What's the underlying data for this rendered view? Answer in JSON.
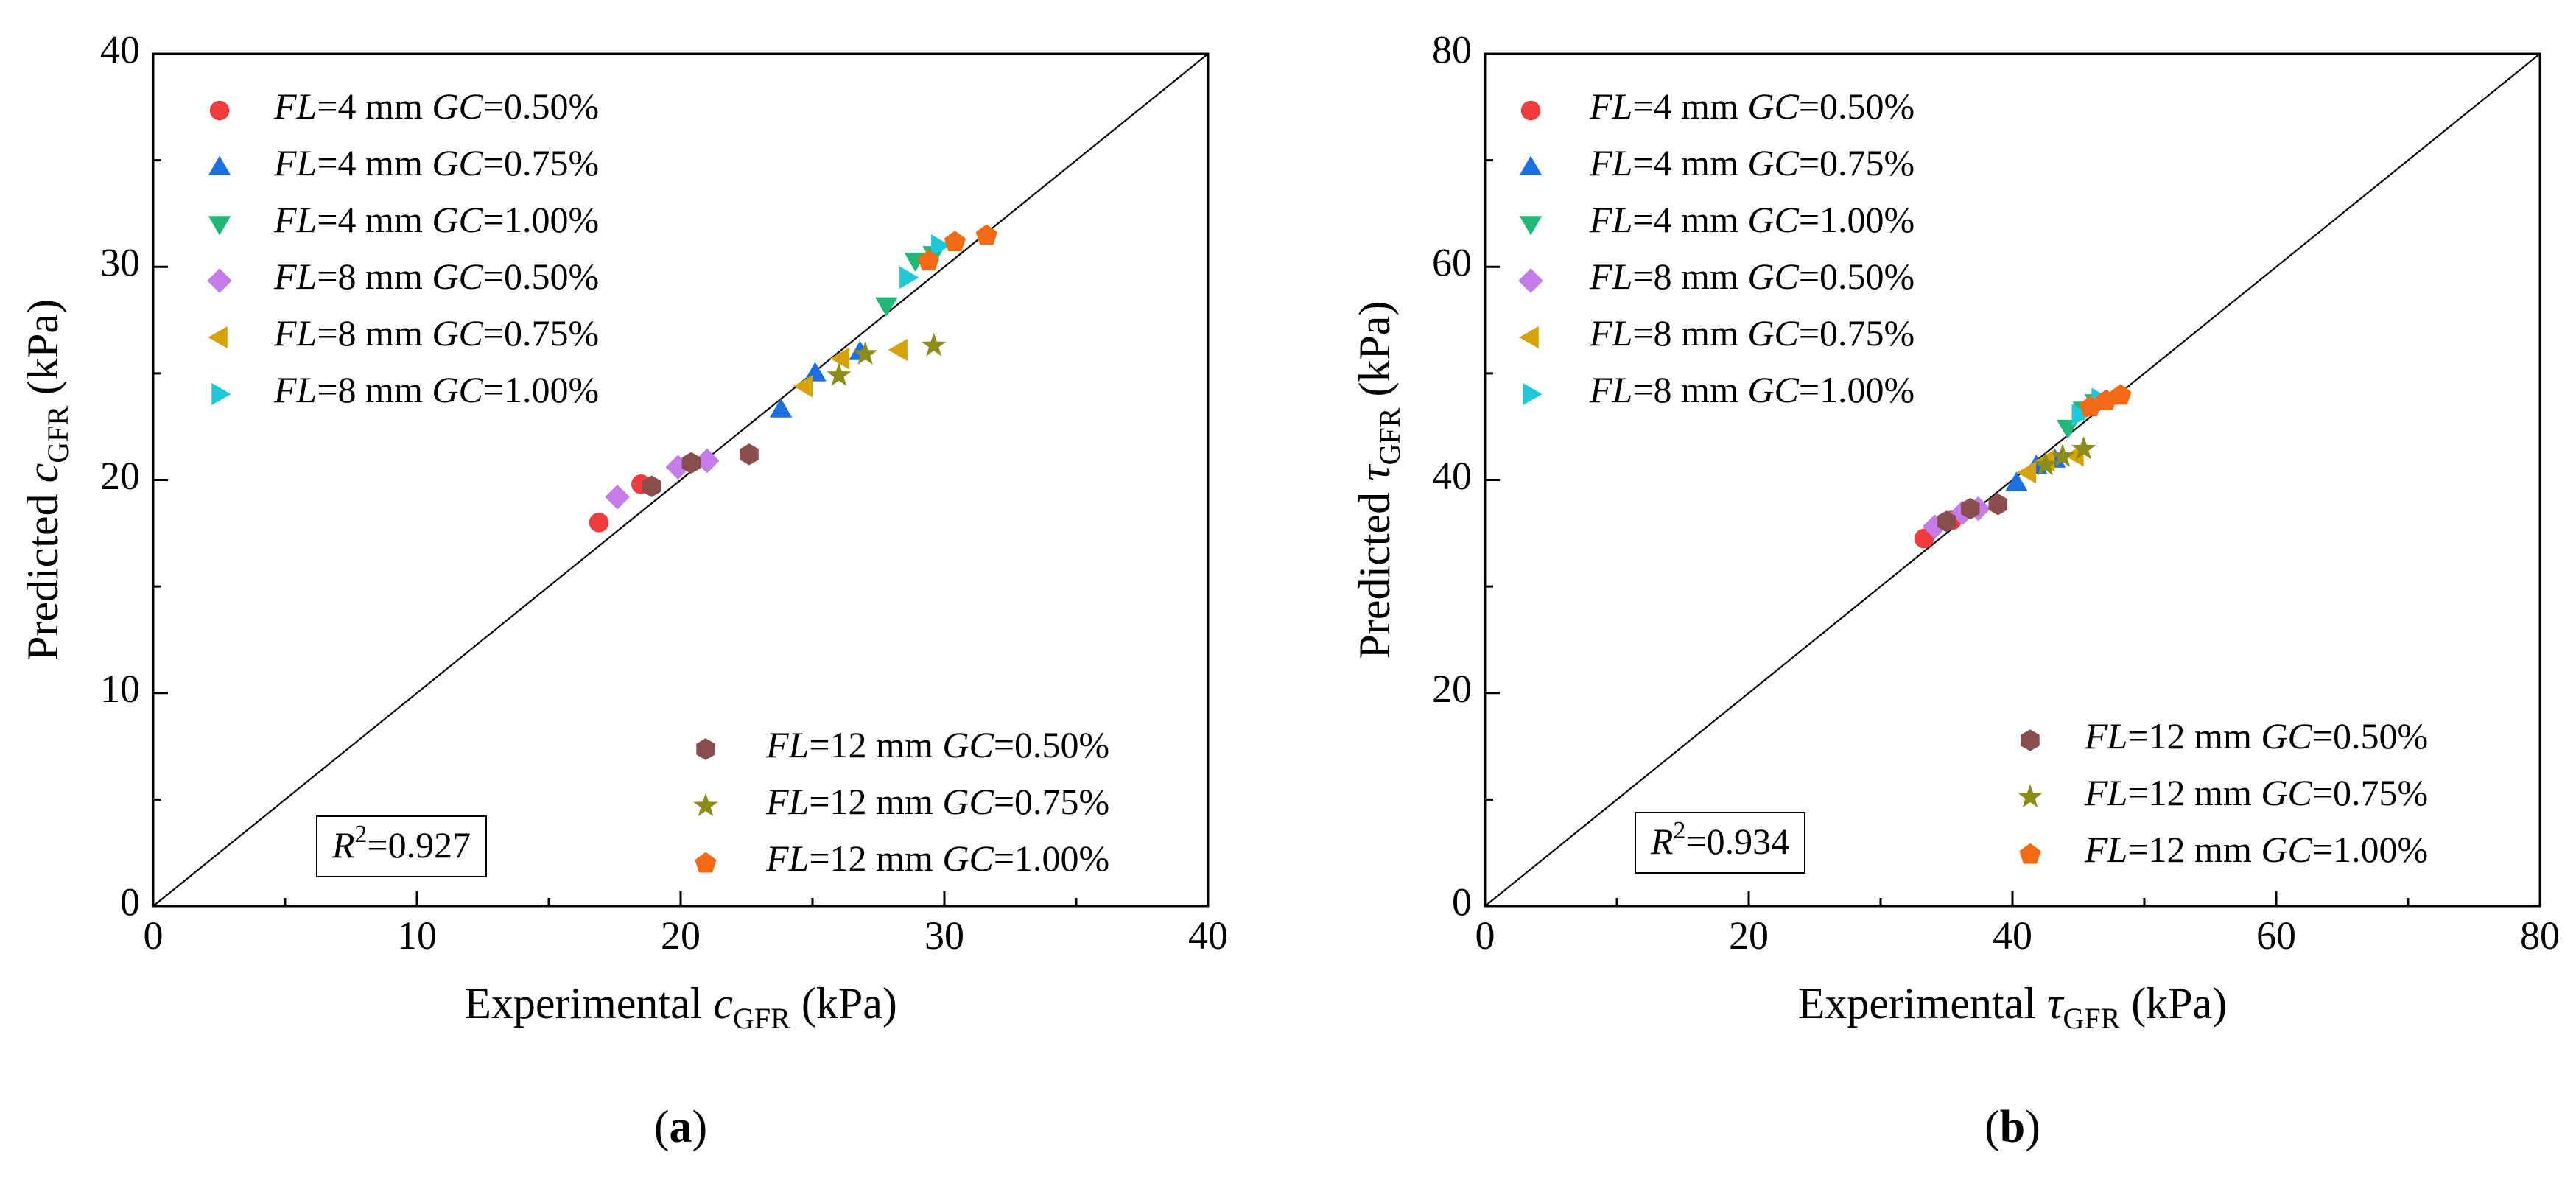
{
  "figure": {
    "panels": [
      "(a)",
      "(b)"
    ],
    "panel_letters": [
      "a",
      "b"
    ]
  },
  "chart_data": [
    {
      "type": "scatter",
      "id": "a",
      "panel_label": "(a)",
      "xlabel": "Experimental c_GFR (kPa)",
      "ylabel": "Predicted c_GFR (kPa)",
      "xlabel_parts": {
        "prefix": "Experimental ",
        "var": "c",
        "sub": "GFR",
        "unit": " (kPa)"
      },
      "ylabel_parts": {
        "prefix": "Predicted ",
        "var": "c",
        "sub": "GFR",
        "unit": " (kPa)"
      },
      "xlim": [
        0,
        40
      ],
      "ylim": [
        0,
        40
      ],
      "xticks": [
        0,
        10,
        20,
        30,
        40
      ],
      "yticks": [
        0,
        10,
        20,
        30,
        40
      ],
      "xtick_labels": [
        "0",
        "10",
        "20",
        "30",
        "40"
      ],
      "ytick_labels": [
        "0",
        "10",
        "20",
        "30",
        "40"
      ],
      "reference_line": "y=x",
      "annotation": {
        "text": "R2=0.927",
        "base": "R",
        "sup": "2",
        "value": "=0.927"
      },
      "series": [
        {
          "name": "FL=4 mm GC=0.50%",
          "fl": "4",
          "gc": "0.50%",
          "marker": "circle",
          "color": "#f03c3c",
          "legend_group": "top",
          "points": [
            [
              16.9,
              18.0
            ],
            [
              18.5,
              19.8
            ]
          ]
        },
        {
          "name": "FL=4 mm GC=0.75%",
          "fl": "4",
          "gc": "0.75%",
          "marker": "triangle-up",
          "color": "#1b6fe0",
          "legend_group": "top",
          "points": [
            [
              23.8,
              23.3
            ],
            [
              25.1,
              25.0
            ],
            [
              26.8,
              26.0
            ]
          ]
        },
        {
          "name": "FL=4 mm GC=1.00%",
          "fl": "4",
          "gc": "1.00%",
          "marker": "triangle-down",
          "color": "#1fb875",
          "legend_group": "top",
          "points": [
            [
              27.8,
              28.2
            ],
            [
              28.9,
              30.3
            ],
            [
              29.6,
              30.6
            ]
          ]
        },
        {
          "name": "FL=8 mm GC=0.50%",
          "fl": "8",
          "gc": "0.50%",
          "marker": "diamond",
          "color": "#c37ce8",
          "legend_group": "top",
          "points": [
            [
              17.6,
              19.2
            ],
            [
              19.9,
              20.6
            ],
            [
              21.0,
              20.9
            ]
          ]
        },
        {
          "name": "FL=8 mm GC=0.75%",
          "fl": "8",
          "gc": "0.75%",
          "marker": "triangle-left",
          "color": "#d6a20c",
          "legend_group": "top",
          "points": [
            [
              24.7,
              24.4
            ],
            [
              26.1,
              25.7
            ],
            [
              28.3,
              26.1
            ]
          ]
        },
        {
          "name": "FL=8 mm GC=1.00%",
          "fl": "8",
          "gc": "1.00%",
          "marker": "triangle-right",
          "color": "#1ec8d8",
          "legend_group": "top",
          "points": [
            [
              28.6,
              29.5
            ],
            [
              29.8,
              31.0
            ]
          ]
        },
        {
          "name": "FL=12 mm GC=0.50%",
          "fl": "12",
          "gc": "0.50%",
          "marker": "hexagon",
          "color": "#8a4d4d",
          "legend_group": "bottom",
          "points": [
            [
              18.9,
              19.7
            ],
            [
              20.4,
              20.8
            ],
            [
              22.6,
              21.2
            ]
          ]
        },
        {
          "name": "FL=12 mm GC=0.75%",
          "fl": "12",
          "gc": "0.75%",
          "marker": "star",
          "color": "#8c8c1a",
          "legend_group": "bottom",
          "points": [
            [
              26.0,
              24.9
            ],
            [
              27.0,
              25.9
            ],
            [
              29.6,
              26.3
            ]
          ]
        },
        {
          "name": "FL=12 mm GC=1.00%",
          "fl": "12",
          "gc": "1.00%",
          "marker": "pentagon",
          "color": "#f56a14",
          "legend_group": "bottom",
          "points": [
            [
              29.4,
              30.3
            ],
            [
              30.4,
              31.2
            ],
            [
              31.6,
              31.5
            ]
          ]
        }
      ]
    },
    {
      "type": "scatter",
      "id": "b",
      "panel_label": "(b)",
      "xlabel": "Experimental τ_GFR (kPa)",
      "ylabel": "Predicted τ_GFR (kPa)",
      "xlabel_parts": {
        "prefix": "Experimental ",
        "var": "τ",
        "sub": "GFR",
        "unit": " (kPa)"
      },
      "ylabel_parts": {
        "prefix": "Predicted ",
        "var": "τ",
        "sub": "GFR",
        "unit": " (kPa)"
      },
      "xlim": [
        0,
        80
      ],
      "ylim": [
        0,
        80
      ],
      "xticks": [
        0,
        20,
        40,
        60,
        80
      ],
      "yticks": [
        0,
        20,
        40,
        60,
        80
      ],
      "xtick_labels": [
        "0",
        "20",
        "40",
        "60",
        "80"
      ],
      "ytick_labels": [
        "0",
        "20",
        "40",
        "60",
        "80"
      ],
      "reference_line": "y=x",
      "annotation": {
        "text": "R2=0.934",
        "base": "R",
        "sup": "2",
        "value": "=0.934"
      },
      "series": [
        {
          "name": "FL=4 mm GC=0.50%",
          "fl": "4",
          "gc": "0.50%",
          "marker": "circle",
          "color": "#f03c3c",
          "legend_group": "top",
          "points": [
            [
              33.3,
              34.5
            ],
            [
              35.4,
              36.2
            ]
          ]
        },
        {
          "name": "FL=4 mm GC=0.75%",
          "fl": "4",
          "gc": "0.75%",
          "marker": "triangle-up",
          "color": "#1b6fe0",
          "legend_group": "top",
          "points": [
            [
              40.3,
              39.7
            ],
            [
              41.8,
              41.3
            ],
            [
              43.2,
              41.9
            ]
          ]
        },
        {
          "name": "FL=4 mm GC=1.00%",
          "fl": "4",
          "gc": "1.00%",
          "marker": "triangle-down",
          "color": "#1fb875",
          "legend_group": "top",
          "points": [
            [
              44.2,
              44.9
            ],
            [
              45.4,
              46.6
            ],
            [
              46.3,
              47.3
            ]
          ]
        },
        {
          "name": "FL=8 mm GC=0.50%",
          "fl": "8",
          "gc": "0.50%",
          "marker": "diamond",
          "color": "#c37ce8",
          "legend_group": "top",
          "points": [
            [
              34.1,
              35.6
            ],
            [
              36.2,
              36.9
            ],
            [
              37.4,
              37.3
            ]
          ]
        },
        {
          "name": "FL=8 mm GC=0.75%",
          "fl": "8",
          "gc": "0.75%",
          "marker": "triangle-left",
          "color": "#d6a20c",
          "legend_group": "top",
          "points": [
            [
              41.2,
              40.7
            ],
            [
              42.6,
              41.8
            ],
            [
              44.8,
              42.3
            ]
          ]
        },
        {
          "name": "FL=8 mm GC=1.00%",
          "fl": "8",
          "gc": "1.00%",
          "marker": "triangle-right",
          "color": "#1ec8d8",
          "legend_group": "top",
          "points": [
            [
              45.1,
              46.1
            ],
            [
              46.6,
              47.6
            ]
          ]
        },
        {
          "name": "FL=12 mm GC=0.50%",
          "fl": "12",
          "gc": "0.50%",
          "marker": "hexagon",
          "color": "#8a4d4d",
          "legend_group": "bottom",
          "points": [
            [
              35.0,
              36.1
            ],
            [
              36.8,
              37.3
            ],
            [
              38.9,
              37.7
            ]
          ]
        },
        {
          "name": "FL=12 mm GC=0.75%",
          "fl": "12",
          "gc": "0.75%",
          "marker": "star",
          "color": "#8c8c1a",
          "legend_group": "bottom",
          "points": [
            [
              42.5,
              41.4
            ],
            [
              43.8,
              42.2
            ],
            [
              45.4,
              42.9
            ]
          ]
        },
        {
          "name": "FL=12 mm GC=1.00%",
          "fl": "12",
          "gc": "1.00%",
          "marker": "pentagon",
          "color": "#f56a14",
          "legend_group": "bottom",
          "points": [
            [
              45.9,
              46.9
            ],
            [
              47.1,
              47.5
            ],
            [
              48.2,
              48.0
            ]
          ]
        }
      ]
    }
  ]
}
